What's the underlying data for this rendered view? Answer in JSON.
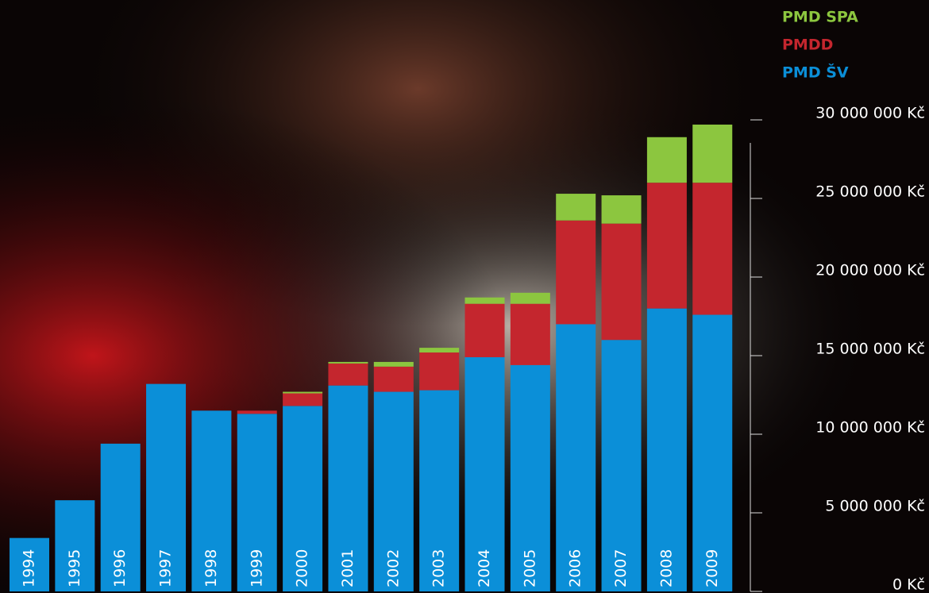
{
  "chart_data": {
    "type": "stacked-bar",
    "categories": [
      "1994",
      "1995",
      "1996",
      "1997",
      "1998",
      "1999",
      "2000",
      "2001",
      "2002",
      "2003",
      "2004",
      "2005",
      "2006",
      "2007",
      "2008",
      "2009"
    ],
    "series": [
      {
        "name": "PMD ŠV",
        "color": "#0b8fd8",
        "values": [
          3400000,
          5800000,
          9400000,
          13200000,
          11500000,
          11300000,
          11800000,
          13100000,
          12700000,
          12800000,
          14900000,
          14400000,
          17000000,
          16000000,
          18000000,
          17600000
        ]
      },
      {
        "name": "PMDD",
        "color": "#c4262e",
        "values": [
          0,
          0,
          0,
          0,
          0,
          200000,
          800000,
          1400000,
          1600000,
          2400000,
          3400000,
          3900000,
          6600000,
          7400000,
          8000000,
          8400000
        ]
      },
      {
        "name": "PMD SPA",
        "color": "#8cc63f",
        "values": [
          0,
          0,
          0,
          0,
          0,
          0,
          100000,
          100000,
          300000,
          300000,
          400000,
          700000,
          1700000,
          1800000,
          2900000,
          3700000
        ]
      }
    ],
    "ylim": [
      0,
      30000000
    ],
    "yticks": [
      {
        "value": 0,
        "label": "0 Kč"
      },
      {
        "value": 5000000,
        "label": "5 000 000 Kč"
      },
      {
        "value": 10000000,
        "label": "10 000 000 Kč"
      },
      {
        "value": 15000000,
        "label": "15 000 000 Kč"
      },
      {
        "value": 20000000,
        "label": "20 000 000 Kč"
      },
      {
        "value": 25000000,
        "label": "25 000 000 Kč"
      },
      {
        "value": 30000000,
        "label": "30 000 000 Kč"
      }
    ],
    "grid": false
  }
}
